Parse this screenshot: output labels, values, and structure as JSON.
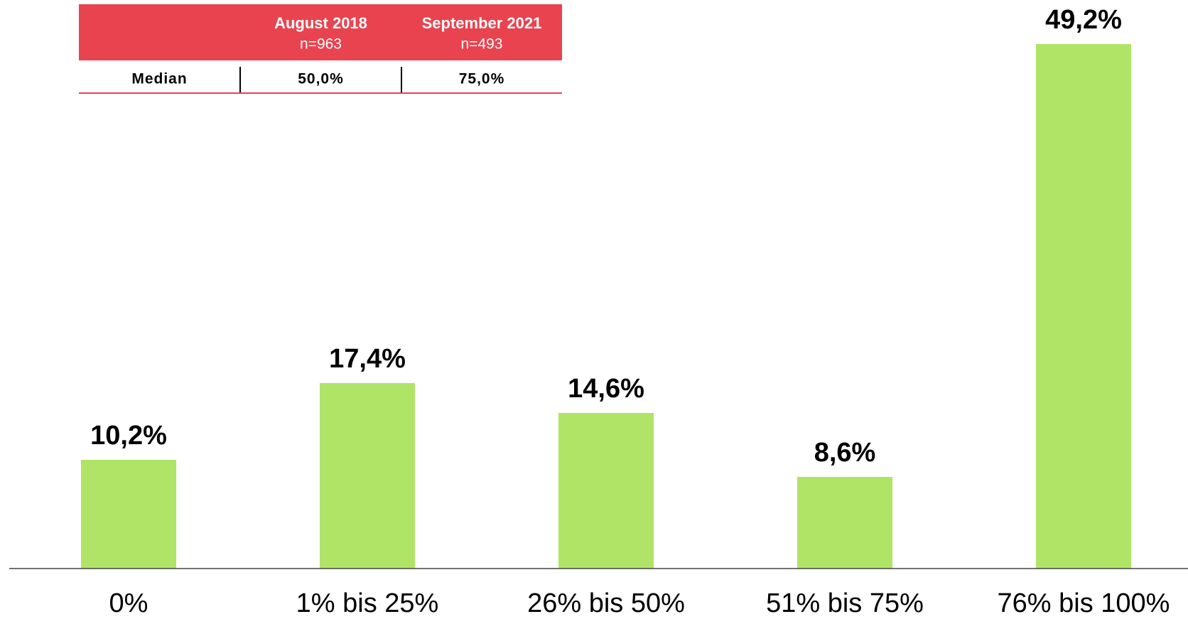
{
  "chart_data": {
    "type": "bar",
    "categories": [
      "0%",
      "1% bis 25%",
      "26% bis 50%",
      "51% bis 75%",
      "76% bis 100%"
    ],
    "values": [
      10.2,
      17.4,
      14.6,
      8.6,
      49.2
    ],
    "value_labels": [
      "10,2%",
      "17,4%",
      "14,6%",
      "8,6%",
      "49,2%"
    ],
    "color": "#b0e466",
    "ylim": [
      0,
      50
    ]
  },
  "table": {
    "columns": [
      {
        "title": "August 2018",
        "n": "n=963"
      },
      {
        "title": "September 2021",
        "n": "n=493"
      }
    ],
    "rows": [
      [
        "Median",
        "50,0%",
        "75,0%"
      ]
    ],
    "color": "#e8434f"
  }
}
